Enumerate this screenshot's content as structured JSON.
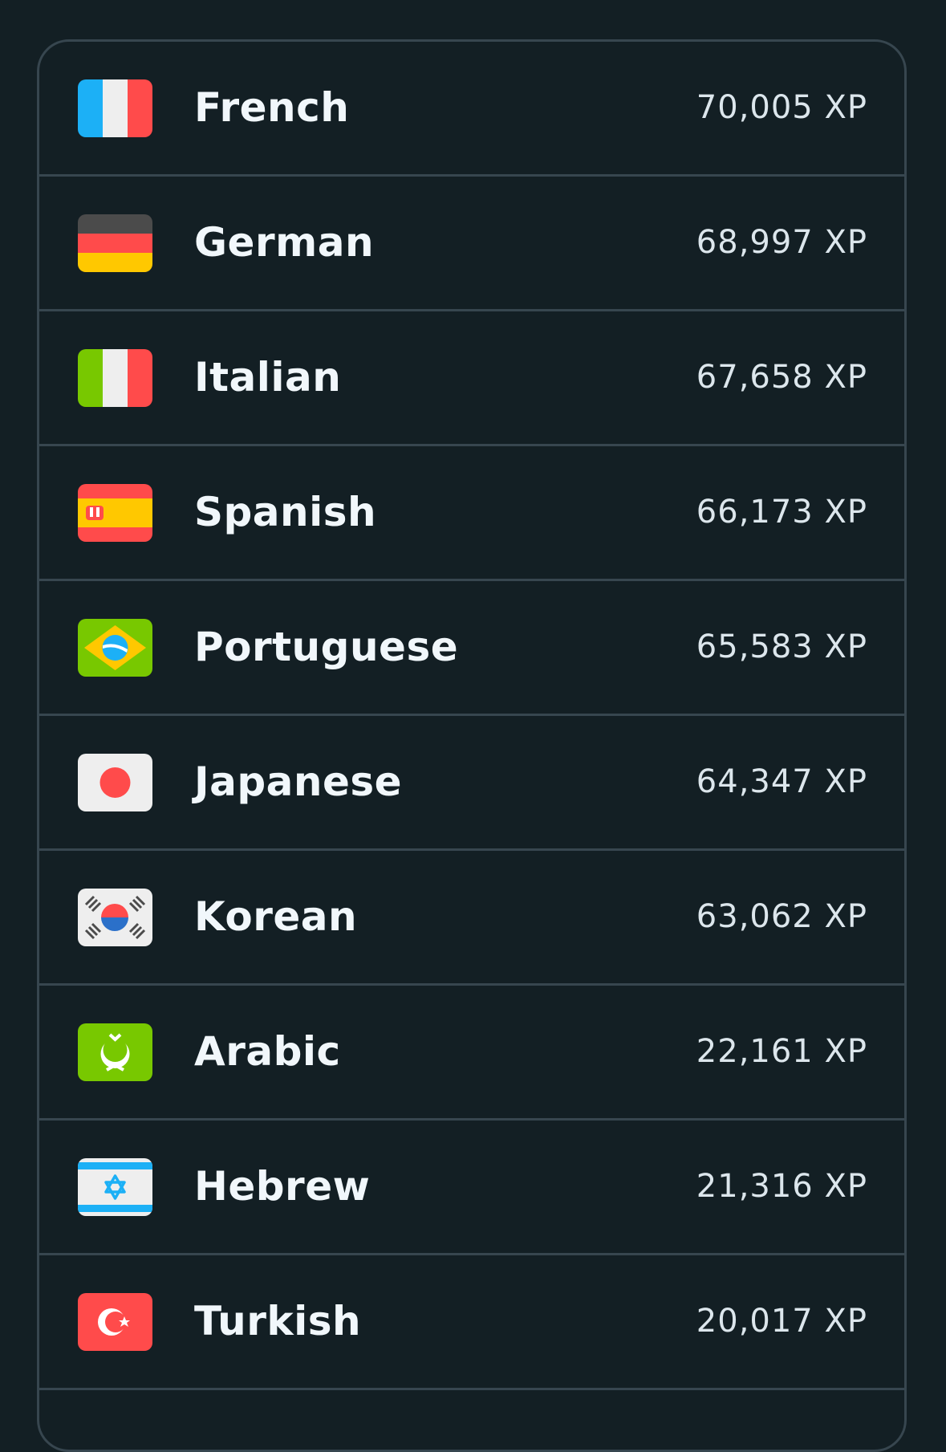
{
  "languages": [
    {
      "name": "French",
      "xp": "70,005 XP",
      "flag": "france-flag"
    },
    {
      "name": "German",
      "xp": "68,997 XP",
      "flag": "germany-flag"
    },
    {
      "name": "Italian",
      "xp": "67,658 XP",
      "flag": "italy-flag"
    },
    {
      "name": "Spanish",
      "xp": "66,173 XP",
      "flag": "spain-flag"
    },
    {
      "name": "Portuguese",
      "xp": "65,583 XP",
      "flag": "brazil-flag"
    },
    {
      "name": "Japanese",
      "xp": "64,347 XP",
      "flag": "japan-flag"
    },
    {
      "name": "Korean",
      "xp": "63,062 XP",
      "flag": "korea-flag"
    },
    {
      "name": "Arabic",
      "xp": "22,161 XP",
      "flag": "arabic-flag"
    },
    {
      "name": "Hebrew",
      "xp": "21,316 XP",
      "flag": "israel-flag"
    },
    {
      "name": "Turkish",
      "xp": "20,017 XP",
      "flag": "turkey-flag"
    }
  ],
  "colors": {
    "background": "#131f24",
    "border": "#37464f",
    "text": "#f1f7fb"
  }
}
